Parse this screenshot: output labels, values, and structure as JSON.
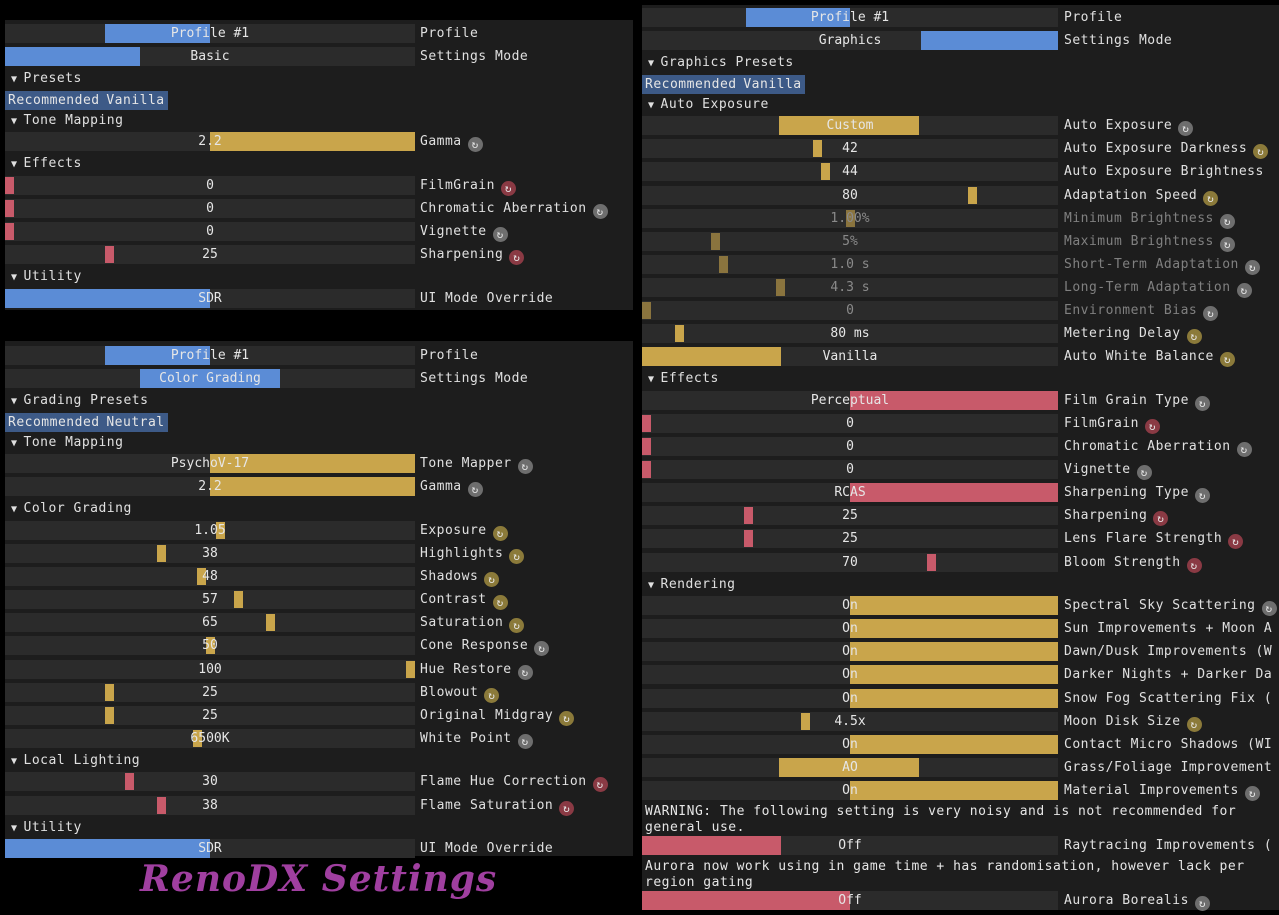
{
  "colors": {
    "accent_blue": "#5b8cd6",
    "gold": "#c9a54b",
    "red": "#c85a6a",
    "panel": "#1d1d1d",
    "slider": "#2b2b2b"
  },
  "brand_title": "RenoDX Settings",
  "panel1": {
    "rows": [
      {
        "kind": "slider",
        "value": "Profile #1",
        "label": "Profile",
        "fill": "blue",
        "mode": "range",
        "from": 0.245,
        "to": 0.5
      },
      {
        "kind": "slider",
        "value": "Basic",
        "label": "Settings Mode",
        "fill": "blue",
        "mode": "range",
        "from": 0,
        "to": 0.33
      },
      {
        "kind": "header",
        "label": "Presets"
      },
      {
        "kind": "buttons",
        "buttons": [
          "Recommended",
          "Vanilla"
        ]
      },
      {
        "kind": "header",
        "label": "Tone Mapping"
      },
      {
        "kind": "slider",
        "value": "2.2",
        "label": "Gamma",
        "fill": "gold",
        "mode": "range",
        "from": 0.5,
        "to": 1,
        "reset": "gray"
      },
      {
        "kind": "header",
        "label": "Effects"
      },
      {
        "kind": "slider",
        "value": "0",
        "label": "FilmGrain",
        "fill": "red",
        "mode": "handle",
        "pos": 0,
        "reset": "red"
      },
      {
        "kind": "slider",
        "value": "0",
        "label": "Chromatic Aberration",
        "fill": "red",
        "mode": "handle",
        "pos": 0,
        "reset": "gray"
      },
      {
        "kind": "slider",
        "value": "0",
        "label": "Vignette",
        "fill": "red",
        "mode": "handle",
        "pos": 0,
        "reset": "gray"
      },
      {
        "kind": "slider",
        "value": "25",
        "label": "Sharpening",
        "fill": "red",
        "mode": "handle",
        "pos": 0.25,
        "reset": "red"
      },
      {
        "kind": "header",
        "label": "Utility"
      },
      {
        "kind": "slider",
        "value": "SDR",
        "label": "UI Mode Override",
        "fill": "blue",
        "mode": "range",
        "from": 0,
        "to": 0.5
      }
    ]
  },
  "panel2": {
    "rows": [
      {
        "kind": "slider",
        "value": "Profile #1",
        "label": "Profile",
        "fill": "blue",
        "mode": "range",
        "from": 0.245,
        "to": 0.5
      },
      {
        "kind": "slider",
        "value": "Color Grading",
        "label": "Settings Mode",
        "fill": "blue",
        "mode": "range",
        "from": 0.33,
        "to": 0.67
      },
      {
        "kind": "header",
        "label": "Grading Presets"
      },
      {
        "kind": "buttons",
        "buttons": [
          "Recommended",
          "Neutral"
        ]
      },
      {
        "kind": "header",
        "label": "Tone Mapping"
      },
      {
        "kind": "slider",
        "value": "PsychoV-17",
        "label": "Tone Mapper",
        "fill": "gold",
        "mode": "range",
        "from": 0.5,
        "to": 1,
        "reset": "gray"
      },
      {
        "kind": "slider",
        "value": "2.2",
        "label": "Gamma",
        "fill": "gold",
        "mode": "range",
        "from": 0.5,
        "to": 1,
        "reset": "gray"
      },
      {
        "kind": "header",
        "label": "Color Grading"
      },
      {
        "kind": "slider",
        "value": "1.05",
        "label": "Exposure",
        "fill": "gold",
        "mode": "handle",
        "pos": 0.525,
        "reset": "gold"
      },
      {
        "kind": "slider",
        "value": "38",
        "label": "Highlights",
        "fill": "gold",
        "mode": "handle",
        "pos": 0.38,
        "reset": "gold"
      },
      {
        "kind": "slider",
        "value": "48",
        "label": "Shadows",
        "fill": "gold",
        "mode": "handle",
        "pos": 0.48,
        "reset": "gold"
      },
      {
        "kind": "slider",
        "value": "57",
        "label": "Contrast",
        "fill": "gold",
        "mode": "handle",
        "pos": 0.57,
        "reset": "gold"
      },
      {
        "kind": "slider",
        "value": "65",
        "label": "Saturation",
        "fill": "gold",
        "mode": "handle",
        "pos": 0.65,
        "reset": "gold"
      },
      {
        "kind": "slider",
        "value": "50",
        "label": "Cone Response",
        "fill": "gold",
        "mode": "handle",
        "pos": 0.5,
        "reset": "gray"
      },
      {
        "kind": "slider",
        "value": "100",
        "label": "Hue Restore",
        "fill": "gold",
        "mode": "handle",
        "pos": 1,
        "reset": "gray"
      },
      {
        "kind": "slider",
        "value": "25",
        "label": "Blowout",
        "fill": "gold",
        "mode": "handle",
        "pos": 0.25,
        "reset": "gold"
      },
      {
        "kind": "slider",
        "value": "25",
        "label": "Original Midgray",
        "fill": "gold",
        "mode": "handle",
        "pos": 0.25,
        "reset": "gold"
      },
      {
        "kind": "slider",
        "value": "6500K",
        "label": "White Point",
        "fill": "gold",
        "mode": "handle",
        "pos": 0.47,
        "reset": "gray"
      },
      {
        "kind": "header",
        "label": "Local Lighting"
      },
      {
        "kind": "slider",
        "value": "30",
        "label": "Flame Hue Correction",
        "fill": "red",
        "mode": "handle",
        "pos": 0.3,
        "reset": "red"
      },
      {
        "kind": "slider",
        "value": "38",
        "label": "Flame Saturation",
        "fill": "red",
        "mode": "handle",
        "pos": 0.38,
        "reset": "red"
      },
      {
        "kind": "header",
        "label": "Utility"
      },
      {
        "kind": "slider",
        "value": "SDR",
        "label": "UI Mode Override",
        "fill": "blue",
        "mode": "range",
        "from": 0,
        "to": 0.5
      }
    ]
  },
  "panel3": {
    "rows": [
      {
        "kind": "slider",
        "value": "Profile #1",
        "label": "Profile",
        "fill": "blue",
        "mode": "range",
        "from": 0.25,
        "to": 0.5
      },
      {
        "kind": "slider",
        "value": "Graphics",
        "label": "Settings Mode",
        "fill": "blue",
        "mode": "range",
        "from": 0.67,
        "to": 1
      },
      {
        "kind": "header",
        "label": "Graphics Presets"
      },
      {
        "kind": "buttons",
        "buttons": [
          "Recommended",
          "Vanilla"
        ]
      },
      {
        "kind": "header",
        "label": "Auto Exposure"
      },
      {
        "kind": "slider",
        "value": "Custom",
        "label": "Auto Exposure",
        "fill": "gold",
        "mode": "range",
        "from": 0.33,
        "to": 0.665,
        "reset": "gray"
      },
      {
        "kind": "slider",
        "value": "42",
        "label": "Auto Exposure Darkness",
        "fill": "gold",
        "mode": "handle",
        "pos": 0.42,
        "reset": "gold"
      },
      {
        "kind": "slider",
        "value": "44",
        "label": "Auto Exposure Brightness",
        "fill": "gold",
        "mode": "handle",
        "pos": 0.44
      },
      {
        "kind": "slider",
        "value": "80",
        "label": "Adaptation Speed",
        "fill": "gold",
        "mode": "handle",
        "pos": 0.8,
        "reset": "gold"
      },
      {
        "kind": "slider",
        "value": "1.00%",
        "label": "Minimum Brightness",
        "fill": "gold",
        "mode": "handle",
        "pos": 0.5,
        "dim": true,
        "reset": "gray"
      },
      {
        "kind": "slider",
        "value": "5%",
        "label": "Maximum Brightness",
        "fill": "gold",
        "mode": "handle",
        "pos": 0.17,
        "dim": true,
        "reset": "gray"
      },
      {
        "kind": "slider",
        "value": "1.0 s",
        "label": "Short-Term Adaptation",
        "fill": "gold",
        "mode": "handle",
        "pos": 0.19,
        "dim": true,
        "reset": "gray"
      },
      {
        "kind": "slider",
        "value": "4.3 s",
        "label": "Long-Term Adaptation",
        "fill": "gold",
        "mode": "handle",
        "pos": 0.33,
        "dim": true,
        "reset": "gray"
      },
      {
        "kind": "slider",
        "value": "0",
        "label": "Environment Bias",
        "fill": "gold",
        "mode": "handle",
        "pos": 0,
        "dim": true,
        "reset": "gray"
      },
      {
        "kind": "slider",
        "value": "80 ms",
        "label": "Metering Delay",
        "fill": "gold",
        "mode": "handle",
        "pos": 0.08,
        "reset": "gold"
      },
      {
        "kind": "slider",
        "value": "Vanilla",
        "label": "Auto White Balance",
        "fill": "gold",
        "mode": "range",
        "from": 0,
        "to": 0.335,
        "reset": "gold"
      },
      {
        "kind": "header",
        "label": "Effects"
      },
      {
        "kind": "slider",
        "value": "Perceptual",
        "label": "Film Grain Type",
        "fill": "red",
        "mode": "range",
        "from": 0.5,
        "to": 1,
        "reset": "gray"
      },
      {
        "kind": "slider",
        "value": "0",
        "label": "FilmGrain",
        "fill": "red",
        "mode": "handle",
        "pos": 0,
        "reset": "red"
      },
      {
        "kind": "slider",
        "value": "0",
        "label": "Chromatic Aberration",
        "fill": "red",
        "mode": "handle",
        "pos": 0,
        "reset": "gray"
      },
      {
        "kind": "slider",
        "value": "0",
        "label": "Vignette",
        "fill": "red",
        "mode": "handle",
        "pos": 0,
        "reset": "gray"
      },
      {
        "kind": "slider",
        "value": "RCAS",
        "label": "Sharpening Type",
        "fill": "red",
        "mode": "range",
        "from": 0.5,
        "to": 1,
        "reset": "gray"
      },
      {
        "kind": "slider",
        "value": "25",
        "label": "Sharpening",
        "fill": "red",
        "mode": "handle",
        "pos": 0.25,
        "reset": "red"
      },
      {
        "kind": "slider",
        "value": "25",
        "label": "Lens Flare Strength",
        "fill": "red",
        "mode": "handle",
        "pos": 0.25,
        "reset": "red"
      },
      {
        "kind": "slider",
        "value": "70",
        "label": "Bloom Strength",
        "fill": "red",
        "mode": "handle",
        "pos": 0.7,
        "reset": "red"
      },
      {
        "kind": "header",
        "label": "Rendering"
      },
      {
        "kind": "slider",
        "value": "On",
        "label": "Spectral Sky Scattering",
        "fill": "gold",
        "mode": "range",
        "from": 0.5,
        "to": 1,
        "reset": "gray"
      },
      {
        "kind": "slider",
        "value": "On",
        "label": "Sun Improvements + Moon A",
        "fill": "gold",
        "mode": "range",
        "from": 0.5,
        "to": 1
      },
      {
        "kind": "slider",
        "value": "On",
        "label": "Dawn/Dusk Improvements (W",
        "fill": "gold",
        "mode": "range",
        "from": 0.5,
        "to": 1
      },
      {
        "kind": "slider",
        "value": "On",
        "label": "Darker Nights + Darker Da",
        "fill": "gold",
        "mode": "range",
        "from": 0.5,
        "to": 1
      },
      {
        "kind": "slider",
        "value": "On",
        "label": "Snow Fog Scattering Fix (",
        "fill": "gold",
        "mode": "range",
        "from": 0.5,
        "to": 1
      },
      {
        "kind": "slider",
        "value": "4.5x",
        "label": "Moon Disk Size",
        "fill": "gold",
        "mode": "handle",
        "pos": 0.39,
        "reset": "gold"
      },
      {
        "kind": "slider",
        "value": "On",
        "label": "Contact Micro Shadows (WI",
        "fill": "gold",
        "mode": "range",
        "from": 0.5,
        "to": 1
      },
      {
        "kind": "slider",
        "value": "AO",
        "label": "Grass/Foliage Improvement",
        "fill": "gold",
        "mode": "range",
        "from": 0.33,
        "to": 0.665
      },
      {
        "kind": "slider",
        "value": "On",
        "label": "Material Improvements",
        "fill": "gold",
        "mode": "range",
        "from": 0.5,
        "to": 1,
        "reset": "gray"
      },
      {
        "kind": "warning",
        "text": "WARNING: The following setting is very noisy and is not recommended for general use."
      },
      {
        "kind": "slider",
        "value": "Off",
        "label": "Raytracing Improvements (",
        "fill": "red",
        "mode": "range",
        "from": 0,
        "to": 0.335
      },
      {
        "kind": "warning",
        "text": "Aurora now work using in game time + has randomisation, however lack per region gating"
      },
      {
        "kind": "slider",
        "value": "Off",
        "label": "Aurora Borealis",
        "fill": "red",
        "mode": "range",
        "from": 0,
        "to": 0.5,
        "reset": "gray"
      }
    ]
  }
}
